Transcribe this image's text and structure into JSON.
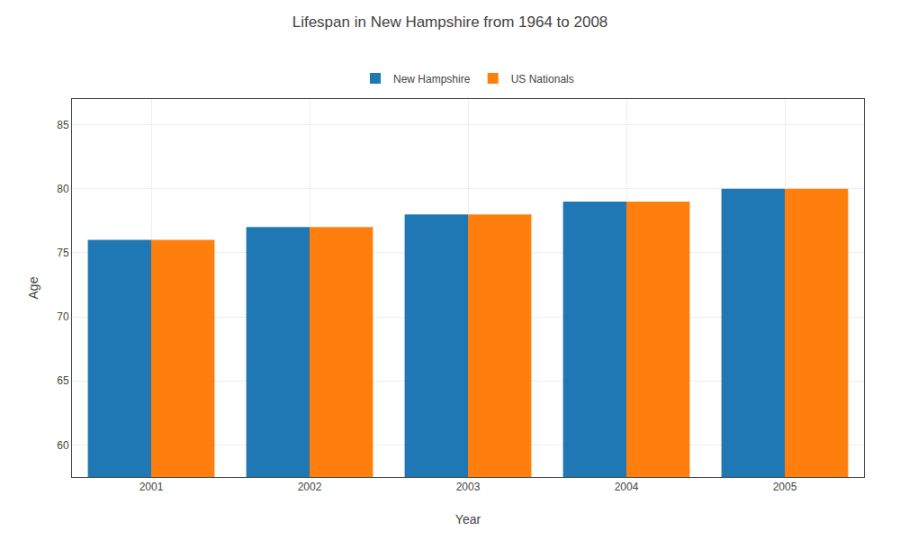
{
  "chart_data": {
    "type": "bar",
    "title": "Lifespan in New Hampshire from 1964 to 2008",
    "xlabel": "Year",
    "ylabel": "Age",
    "categories": [
      "2001",
      "2002",
      "2003",
      "2004",
      "2005"
    ],
    "series": [
      {
        "name": "New Hampshire",
        "values": [
          76,
          77,
          78,
          79,
          80
        ]
      },
      {
        "name": "US Nationals",
        "values": [
          76,
          77,
          78,
          79,
          80
        ]
      }
    ],
    "ylim": [
      57.5,
      87
    ],
    "yticks": [
      60,
      65,
      70,
      75,
      80,
      85
    ],
    "grid": true,
    "legend": "upper center"
  }
}
